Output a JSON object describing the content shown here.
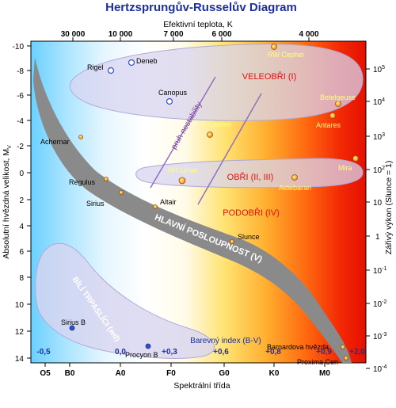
{
  "title": "Hertzsprungův-Russelův Diagram",
  "axes": {
    "top_label": "Efektivní teplota, K",
    "bottom_label": "Spektrální třída",
    "left_label": "Absolutní hvězdná velikost, M",
    "left_label_sub": "V",
    "right_label": "Zářivý výkon (Slunce = 1)",
    "top_ticks": [
      "30 000",
      "10 000",
      "7 000",
      "6 000",
      "4 000"
    ],
    "bottom_ticks": [
      "O5",
      "B0",
      "A0",
      "F0",
      "G0",
      "K0",
      "M0"
    ],
    "left_ticks": [
      "-10",
      "-8",
      "-6",
      "-4",
      "-2",
      "0",
      "2",
      "4",
      "6",
      "8",
      "10",
      "12",
      "14"
    ],
    "right_ticks": [
      {
        "base": "10",
        "exp": "5"
      },
      {
        "base": "10",
        "exp": "4"
      },
      {
        "base": "10",
        "exp": "3"
      },
      {
        "base": "10",
        "exp": "2"
      },
      {
        "base": "10",
        "exp": ""
      },
      {
        "base": "1",
        "exp": ""
      },
      {
        "base": "10",
        "exp": "-1"
      },
      {
        "base": "10",
        "exp": "-2"
      },
      {
        "base": "10",
        "exp": "-3"
      },
      {
        "base": "10",
        "exp": "-4"
      }
    ]
  },
  "color_index": {
    "title": "Barevný index (B-V)",
    "values": [
      "-0,5",
      "0,0",
      "+0,3",
      "+0,6",
      "+0,8",
      "+0,9",
      "+2,0"
    ]
  },
  "regions": {
    "supergiants": "VELEOBŘI (I)",
    "giants": "OBŘI (II, III)",
    "subgiants": "PODOBŘI (IV)",
    "main_sequence": "HLAVNÍ POSLOUPNOST (V)",
    "white_dwarfs": "BÍLÍ TRPASLÍCI (wd)",
    "instability_strip": "pruh nestability"
  },
  "stars": {
    "rigel": "Rigel",
    "deneb": "Deneb",
    "canopus": "Canopus",
    "rw_cephei": "RW Cephei",
    "betelgeuse": "Betelgeuse",
    "antares": "Antares",
    "delta_cephei": "δ Cephei",
    "rr_lyrae": "RR Lyrae",
    "aldebaran": "Aldebaran",
    "mira": "Mira",
    "achernar": "Achernar",
    "regulus": "Regulus",
    "sirius": "Sirius",
    "altair": "Altair",
    "slunce": "Slunce",
    "sirius_b": "Sirius B",
    "procyon_b": "Procyon B",
    "barnard": "Barnardova hvězda",
    "proxima": "Proxima Cen"
  },
  "colors": {
    "title": "#1a2fa0",
    "region_text": "#e01010",
    "band": "#8a8a8a",
    "region_fill": "#d8d4f0",
    "star_orange": "#f0a020",
    "star_blue": "#3050d0"
  }
}
